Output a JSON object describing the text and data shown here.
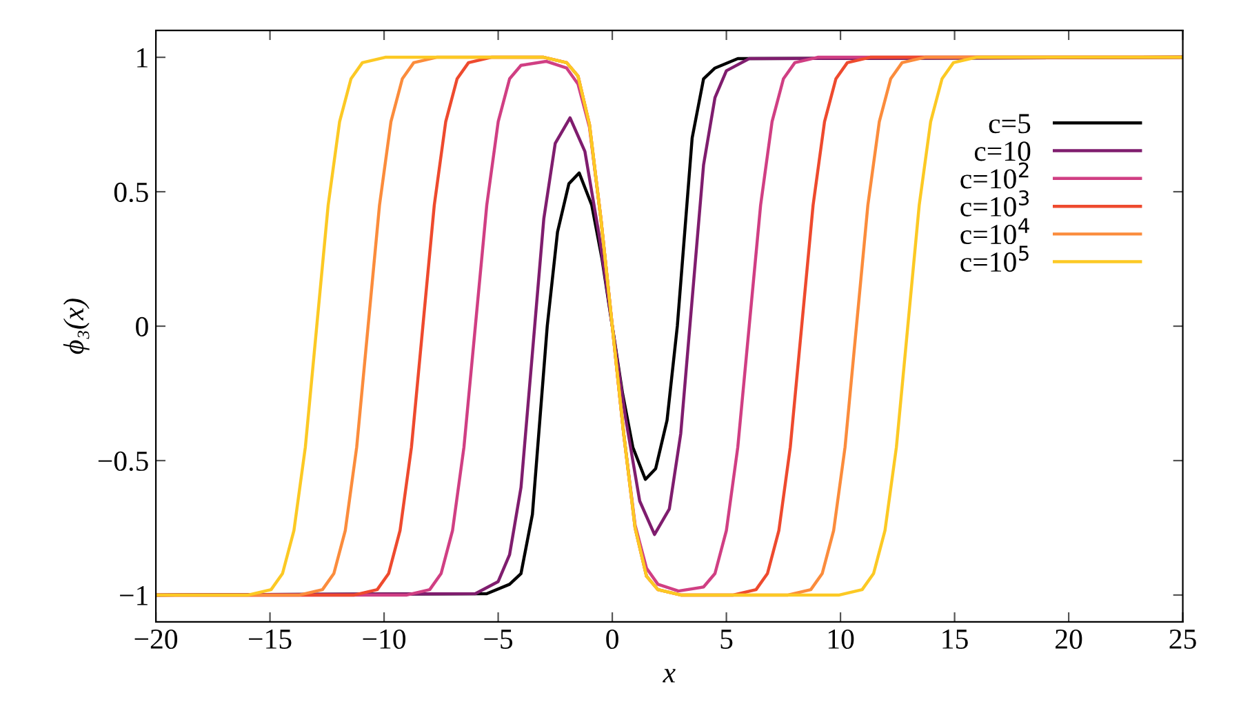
{
  "chart_data": {
    "type": "line",
    "xlabel": "x",
    "ylabel": "ϕ₃(x)",
    "xlim": [
      -20,
      25
    ],
    "ylim": [
      -1.1,
      1.1
    ],
    "xticks": [
      {
        "value": -20,
        "label": "−20"
      },
      {
        "value": -15,
        "label": "−15"
      },
      {
        "value": -10,
        "label": "−10"
      },
      {
        "value": -5,
        "label": "−5"
      },
      0,
      5,
      10,
      15,
      20,
      25
    ],
    "yticks": [
      {
        "value": -1,
        "label": "−1"
      },
      {
        "value": -0.5,
        "label": "−0.5"
      },
      0,
      0.5,
      1
    ],
    "grid": false,
    "legend": "top right",
    "marker": "none",
    "line_style": "solid",
    "series": [
      {
        "name": "c=5",
        "color": "#000000",
        "x": [
          -20,
          -5.5,
          -4.5,
          -4,
          -3.5,
          -2.85,
          -2.4,
          -1.9,
          -1.45,
          -0.9,
          -0.45,
          0,
          0.45,
          0.9,
          1.45,
          1.9,
          2.4,
          2.85,
          3.5,
          4,
          4.5,
          5.5,
          25
        ],
        "values": [
          -1,
          -0.995,
          -0.96,
          -0.92,
          -0.7,
          0,
          0.35,
          0.53,
          0.57,
          0.45,
          0.25,
          0,
          -0.25,
          -0.45,
          -0.57,
          -0.53,
          -0.35,
          0,
          0.7,
          0.92,
          0.96,
          0.995,
          1
        ]
      },
      {
        "name": "c=10",
        "color": "#7f1d6e",
        "x": [
          -20,
          -6,
          -5,
          -4.5,
          -4,
          -3.4,
          -3,
          -2.5,
          -1.85,
          -1.2,
          -0.6,
          0,
          0.6,
          1.2,
          1.85,
          2.5,
          3,
          3.4,
          4,
          4.5,
          5,
          6,
          25
        ],
        "values": [
          -1,
          -0.995,
          -0.95,
          -0.85,
          -0.6,
          0,
          0.4,
          0.68,
          0.775,
          0.65,
          0.35,
          0,
          -0.35,
          -0.65,
          -0.775,
          -0.68,
          -0.4,
          0,
          0.6,
          0.85,
          0.95,
          0.995,
          1
        ]
      },
      {
        "name": "c=10$^{2}$",
        "color": "#d03f83",
        "x": [
          -20,
          -9,
          -8,
          -7.5,
          -7,
          -6.5,
          -6,
          -5.5,
          -5,
          -4.5,
          -4,
          -2.9,
          -2,
          -1.5,
          -1,
          -0.5,
          0,
          0.5,
          1,
          1.5,
          2,
          2.9,
          4,
          4.5,
          5,
          5.5,
          6,
          6.5,
          7,
          7.5,
          8,
          9,
          25
        ],
        "values": [
          -1,
          -1,
          -0.98,
          -0.92,
          -0.76,
          -0.45,
          0,
          0.45,
          0.76,
          0.92,
          0.97,
          0.985,
          0.96,
          0.9,
          0.74,
          0.4,
          0,
          -0.4,
          -0.74,
          -0.9,
          -0.96,
          -0.985,
          -0.97,
          -0.92,
          -0.76,
          -0.45,
          0,
          0.45,
          0.76,
          0.92,
          0.98,
          1,
          1
        ]
      },
      {
        "name": "c=10$^{3}$",
        "color": "#ee4a2e",
        "x": [
          -20,
          -11.3,
          -10.3,
          -9.8,
          -9.3,
          -8.8,
          -8.3,
          -7.8,
          -7.3,
          -6.8,
          -6.3,
          -5.3,
          -3,
          -2,
          -1.5,
          -1,
          -0.5,
          0,
          0.5,
          1,
          1.5,
          2,
          3,
          5.3,
          6.3,
          6.8,
          7.3,
          7.8,
          8.3,
          8.8,
          9.3,
          9.8,
          10.3,
          11.3,
          25
        ],
        "values": [
          -1,
          -1,
          -0.98,
          -0.92,
          -0.76,
          -0.45,
          0,
          0.45,
          0.76,
          0.92,
          0.98,
          1,
          1,
          0.98,
          0.93,
          0.75,
          0.4,
          0,
          -0.4,
          -0.75,
          -0.93,
          -0.98,
          -1,
          -1,
          -0.98,
          -0.92,
          -0.76,
          -0.45,
          0,
          0.45,
          0.76,
          0.92,
          0.98,
          1,
          1
        ]
      },
      {
        "name": "c=10$^{4}$",
        "color": "#fb8c3c",
        "x": [
          -20,
          -13.7,
          -12.7,
          -12.2,
          -11.7,
          -11.2,
          -10.7,
          -10.2,
          -9.7,
          -9.2,
          -8.7,
          -7.7,
          -3,
          -2,
          -1.5,
          -1,
          -0.5,
          0,
          0.5,
          1,
          1.5,
          2,
          3,
          7.7,
          8.7,
          9.2,
          9.7,
          10.2,
          10.7,
          11.2,
          11.7,
          12.2,
          12.7,
          13.7,
          25
        ],
        "values": [
          -1,
          -1,
          -0.98,
          -0.92,
          -0.76,
          -0.45,
          0,
          0.45,
          0.76,
          0.92,
          0.98,
          1,
          1,
          0.98,
          0.93,
          0.75,
          0.4,
          0,
          -0.4,
          -0.75,
          -0.93,
          -0.98,
          -1,
          -1,
          -0.98,
          -0.92,
          -0.76,
          -0.45,
          0,
          0.45,
          0.76,
          0.92,
          0.98,
          1,
          1
        ]
      },
      {
        "name": "c=10$^{5}$",
        "color": "#fcc924",
        "x": [
          -20,
          -15.95,
          -14.95,
          -14.45,
          -13.95,
          -13.45,
          -12.95,
          -12.45,
          -11.95,
          -11.45,
          -10.95,
          -9.95,
          -3,
          -2,
          -1.5,
          -1,
          -0.5,
          0,
          0.5,
          1,
          1.5,
          2,
          3,
          9.95,
          10.95,
          11.45,
          11.95,
          12.45,
          12.95,
          13.45,
          13.95,
          14.45,
          14.95,
          15.95,
          25
        ],
        "values": [
          -1,
          -1,
          -0.98,
          -0.92,
          -0.76,
          -0.45,
          0,
          0.45,
          0.76,
          0.92,
          0.98,
          1,
          1,
          0.98,
          0.93,
          0.75,
          0.4,
          0,
          -0.4,
          -0.75,
          -0.93,
          -0.98,
          -1,
          -1,
          -0.98,
          -0.92,
          -0.76,
          -0.45,
          0,
          0.45,
          0.76,
          0.92,
          0.98,
          1,
          1
        ]
      }
    ]
  }
}
